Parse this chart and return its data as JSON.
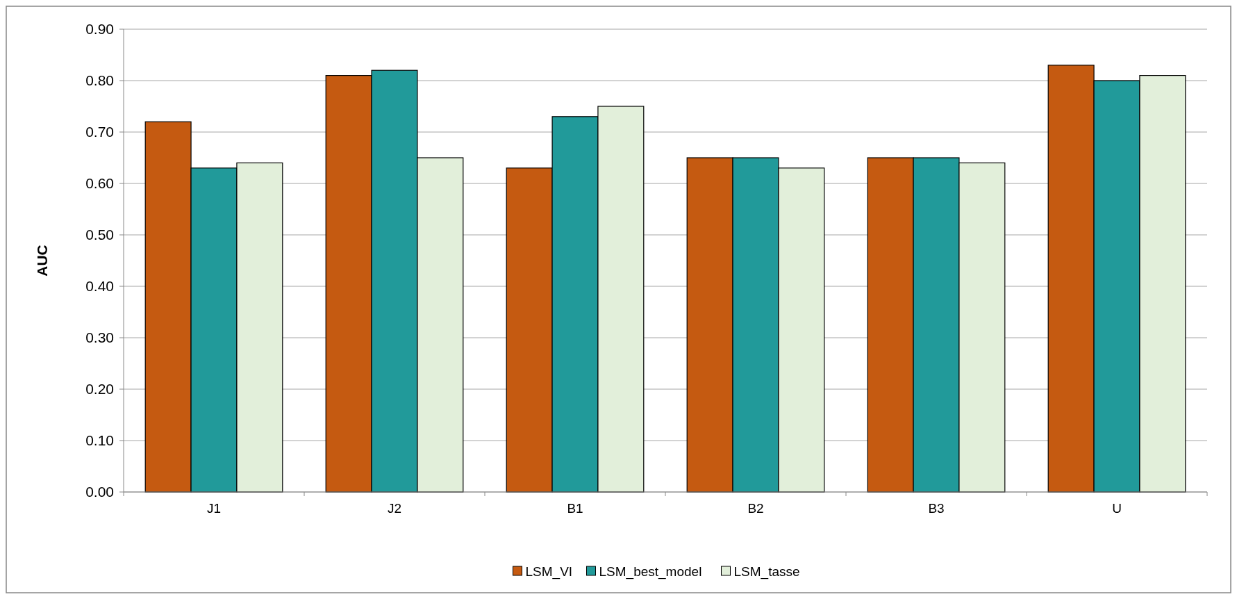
{
  "chart_data": {
    "type": "bar",
    "ylabel": "AUC",
    "categories": [
      "J1",
      "J2",
      "B1",
      "B2",
      "B3",
      "U"
    ],
    "series": [
      {
        "name": "LSM_VI",
        "color": "#c55a11",
        "values": [
          0.72,
          0.81,
          0.63,
          0.65,
          0.65,
          0.83
        ]
      },
      {
        "name": "LSM_best_model",
        "color": "#219a9a",
        "values": [
          0.63,
          0.82,
          0.73,
          0.65,
          0.65,
          0.8
        ]
      },
      {
        "name": "LSM_tasse",
        "color": "#e2efda",
        "values": [
          0.64,
          0.65,
          0.75,
          0.63,
          0.64,
          0.81
        ]
      }
    ],
    "ylim": [
      0,
      0.9
    ],
    "yticks": [
      {
        "value": 0,
        "label": "0.00"
      },
      {
        "value": 0.1,
        "label": "0.10"
      },
      {
        "value": 0.2,
        "label": "0.20"
      },
      {
        "value": 0.3,
        "label": "0.30"
      },
      {
        "value": 0.4,
        "label": "0.40"
      },
      {
        "value": 0.5,
        "label": "0.50"
      },
      {
        "value": 0.6,
        "label": "0.60"
      },
      {
        "value": 0.7,
        "label": "0.70"
      },
      {
        "value": 0.8,
        "label": "0.80"
      },
      {
        "value": 0.9,
        "label": "0.90"
      }
    ],
    "grid": "y",
    "legend": "bottom"
  }
}
